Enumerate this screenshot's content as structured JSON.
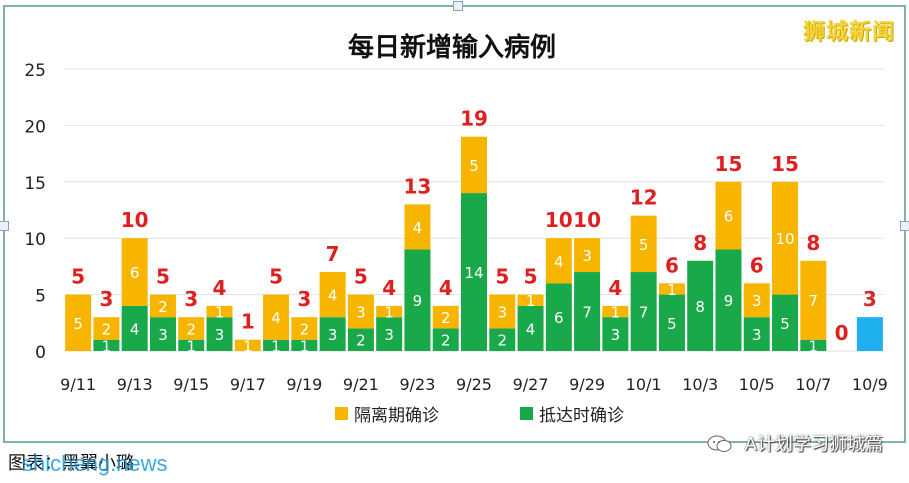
{
  "brand": "狮城新闻",
  "footer": {
    "caption": "图表：黑翼小璐",
    "watermark": "shicheng.news",
    "account": "A计划学习狮城篇"
  },
  "chart_data": {
    "type": "bar",
    "stacked": true,
    "title": "每日新增输入病例",
    "categories": [
      "9/11",
      "9/12",
      "9/13",
      "9/14",
      "9/15",
      "9/16",
      "9/17",
      "9/18",
      "9/19",
      "9/20",
      "9/21",
      "9/22",
      "9/23",
      "9/24",
      "9/25",
      "9/26",
      "9/27",
      "9/28",
      "9/29",
      "9/30",
      "10/1",
      "10/2",
      "10/3",
      "10/4",
      "10/5",
      "10/6",
      "10/7",
      "10/8",
      "10/9"
    ],
    "x_tick_labels": [
      "9/11",
      "",
      "9/13",
      "",
      "9/15",
      "",
      "9/17",
      "",
      "9/19",
      "",
      "9/21",
      "",
      "9/23",
      "",
      "9/25",
      "",
      "9/27",
      "",
      "9/29",
      "",
      "10/1",
      "",
      "10/3",
      "",
      "10/5",
      "",
      "10/7",
      "",
      "10/9"
    ],
    "series": [
      {
        "name": "抵达时确诊",
        "color": "#19a84a",
        "values": [
          0,
          1,
          4,
          3,
          1,
          3,
          0,
          1,
          1,
          3,
          2,
          3,
          9,
          2,
          14,
          2,
          4,
          6,
          7,
          3,
          7,
          5,
          8,
          9,
          3,
          5,
          1,
          0,
          0
        ]
      },
      {
        "name": "隔离期确诊",
        "color": "#f7b500",
        "values": [
          5,
          2,
          6,
          2,
          2,
          1,
          1,
          4,
          2,
          4,
          3,
          1,
          4,
          2,
          5,
          3,
          1,
          4,
          3,
          1,
          5,
          1,
          0,
          6,
          3,
          10,
          7,
          0,
          0
        ]
      },
      {
        "name": "",
        "color": "#1fb0f0",
        "values": [
          0,
          0,
          0,
          0,
          0,
          0,
          0,
          0,
          0,
          0,
          0,
          0,
          0,
          0,
          0,
          0,
          0,
          0,
          0,
          0,
          0,
          0,
          0,
          0,
          0,
          0,
          0,
          0,
          3
        ]
      }
    ],
    "totals": [
      5,
      3,
      10,
      5,
      3,
      4,
      1,
      5,
      3,
      7,
      5,
      4,
      13,
      4,
      19,
      5,
      5,
      10,
      10,
      4,
      12,
      6,
      8,
      15,
      6,
      15,
      8,
      0,
      3
    ],
    "yticks": [
      0,
      5,
      10,
      15,
      20,
      25
    ],
    "ylim": [
      0,
      25
    ],
    "grid": true,
    "legend": "bottom-center",
    "legend_entries": [
      "隔离期确诊",
      "抵达时确诊"
    ]
  }
}
